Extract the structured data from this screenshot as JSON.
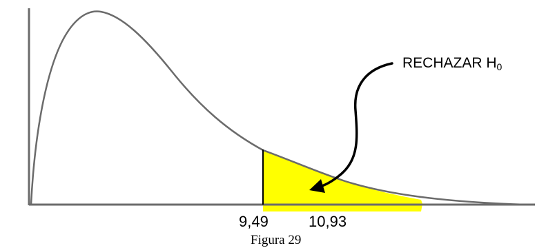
{
  "figure": {
    "caption": "Figura 29",
    "annotation": {
      "text": "RECHAZAR H",
      "subscript": "0"
    },
    "colors": {
      "curve": "#6b6b6b",
      "shaded_region": "#ffff00",
      "axis": "#6b6b6b",
      "arrow": "#000000"
    }
  },
  "chart_data": {
    "type": "area",
    "description_shape": "right-skewed density curve with shaded right tail",
    "tick_labels": [
      "9,49",
      "10,93"
    ],
    "critical_value": 9.49,
    "test_statistic": 10.93,
    "shaded_region": "right tail beyond 9,49"
  }
}
